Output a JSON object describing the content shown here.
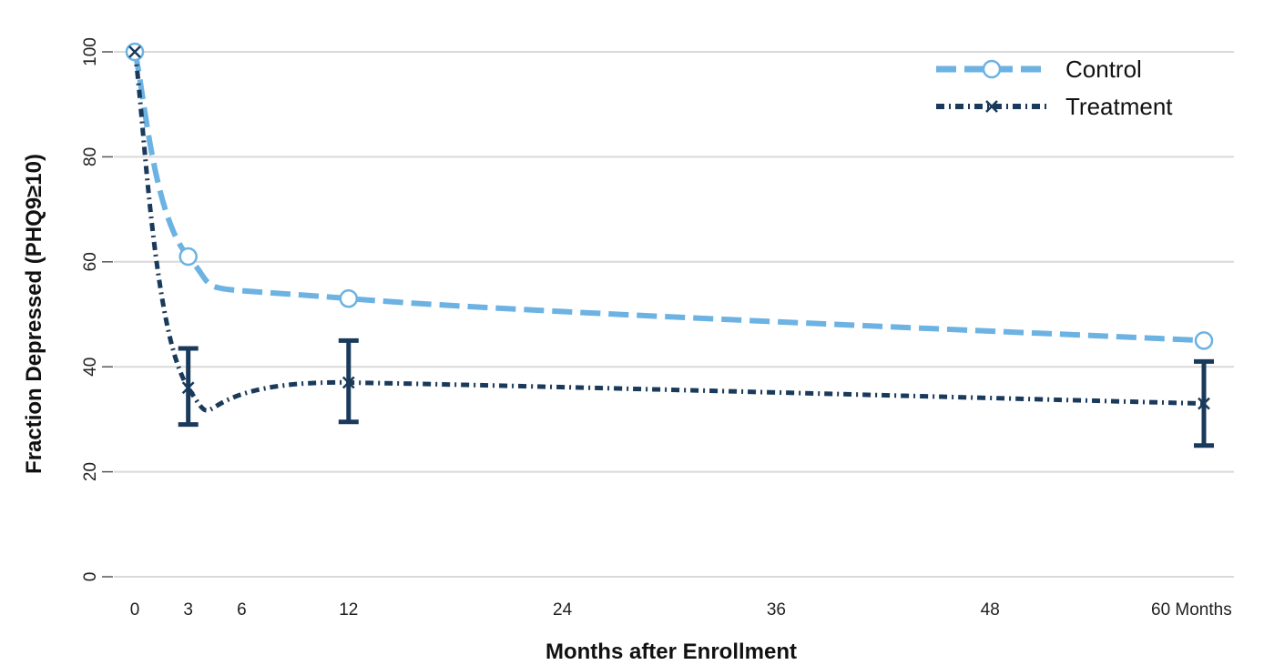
{
  "chart_data": {
    "type": "line",
    "title": "",
    "xlabel": "Months after Enrollment",
    "ylabel": "Fraction Depressed (PHQ9≥10)",
    "ylim": [
      0,
      100
    ],
    "xlim": [
      0,
      60
    ],
    "yticks": [
      0,
      20,
      40,
      60,
      80,
      100
    ],
    "xticks": [
      0,
      3,
      6,
      12,
      24,
      36,
      48,
      60
    ],
    "xtick_labels": [
      "0",
      "3",
      "6",
      "12",
      "24",
      "36",
      "48",
      "60 Months"
    ],
    "grid": true,
    "legend_position": "top-right",
    "series": [
      {
        "name": "Control",
        "color": "#6CB2E2",
        "line_style": "dashed",
        "marker": "circle",
        "x": [
          0,
          3,
          12,
          60
        ],
        "y": [
          100,
          61,
          53,
          45
        ]
      },
      {
        "name": "Treatment",
        "color": "#1A3A5C",
        "line_style": "dash-dot",
        "marker": "x",
        "x": [
          0,
          3,
          12,
          60
        ],
        "y": [
          100,
          36,
          37,
          33
        ],
        "error_low": [
          null,
          29,
          29.5,
          25
        ],
        "error_high": [
          null,
          43.5,
          45,
          41
        ]
      }
    ]
  }
}
